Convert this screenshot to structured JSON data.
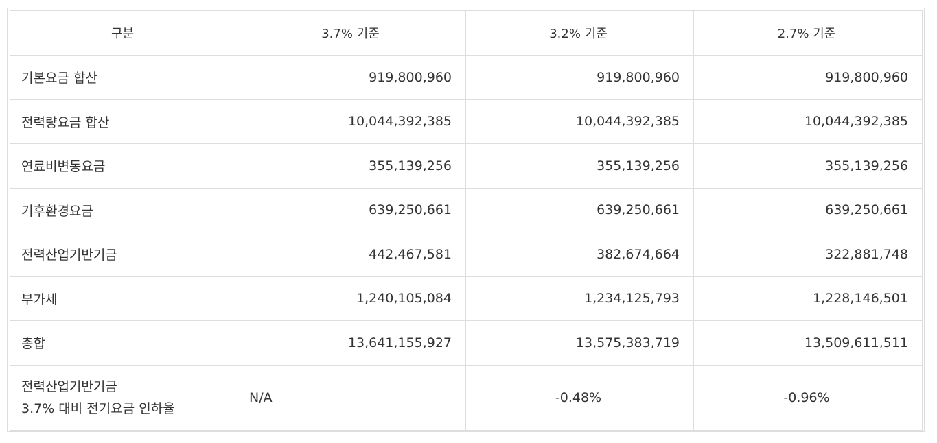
{
  "table": {
    "header": [
      "구분",
      "3.7% 기준",
      "3.2% 기준",
      "2.7% 기준"
    ],
    "rows": [
      [
        "기본요금 합산",
        "919,800,960",
        "919,800,960",
        "919,800,960"
      ],
      [
        "전력량요금 합산",
        "10,044,392,385",
        "10,044,392,385",
        "10,044,392,385"
      ],
      [
        "연료비변동요금",
        "355,139,256",
        "355,139,256",
        "355,139,256"
      ],
      [
        "기후환경요금",
        "639,250,661",
        "639,250,661",
        "639,250,661"
      ],
      [
        "전력산업기반기금",
        "442,467,581",
        "382,674,664",
        "322,881,748"
      ],
      [
        "부가세",
        "1,240,105,084",
        "1,234,125,793",
        "1,228,146,501"
      ],
      [
        "총합",
        "13,641,155,927",
        "13,575,383,719",
        "13,509,611,511"
      ]
    ],
    "footer_row": {
      "label": [
        "전력산업기반기금",
        "3.7% 대비 전기요금 인하율"
      ],
      "values": [
        "N/A",
        "-0.48%",
        "-0.96%"
      ]
    }
  }
}
